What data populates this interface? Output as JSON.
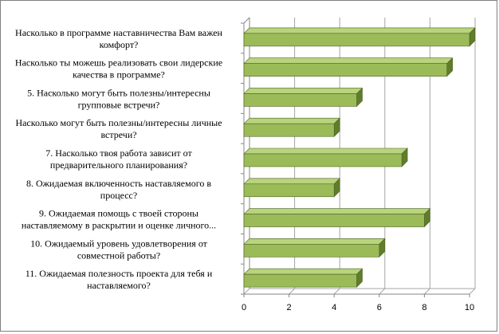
{
  "chart_data": {
    "type": "bar",
    "orientation": "horizontal",
    "style": "3d",
    "title": "",
    "xlabel": "",
    "ylabel": "",
    "categories": [
      [
        "Насколько в программе наставничества Вам важен",
        "комфорт?"
      ],
      [
        "Насколько  ты можешь реализовать  свои лидерские",
        "качества в программе?"
      ],
      [
        "5. Насколько могут быть полезны/интересны",
        "групповые встречи?"
      ],
      [
        "Насколько  могут быть полезны/интересны личные",
        "встречи?"
      ],
      [
        "7. Насколько твоя работа зависит от",
        "предварительного  планирования?"
      ],
      [
        "8. Ожидаемая включенность  наставляемого в",
        "процесс?"
      ],
      [
        "9. Ожидаемая помощь с твоей стороны",
        "наставляемому в раскрытии и оценке личного..."
      ],
      [
        "10. Ожидаемый уровень удовлетворения  от",
        "совместной работы?"
      ],
      [
        "11. Ожидаемая полезность  проекта для тебя и",
        "наставляемого?"
      ]
    ],
    "values": [
      10,
      9,
      5,
      4,
      7,
      4,
      8,
      6,
      5
    ],
    "xlim": [
      0,
      10
    ],
    "xticks": [
      "0",
      "2",
      "4",
      "6",
      "8",
      "10"
    ],
    "grid": true,
    "legend": "none",
    "colors": {
      "bar_front": "#9bbb59",
      "bar_top": "#b8d47c",
      "bar_side": "#5f7d2a",
      "bar_edge": "#4f6228",
      "grid": "#a6a6a6",
      "axis": "#868686"
    }
  }
}
